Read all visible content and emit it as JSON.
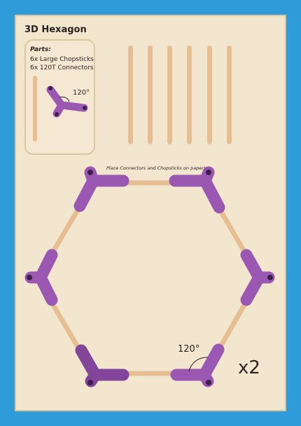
{
  "title": "3D Hexagon",
  "parts": {
    "heading": "Parts:",
    "items": [
      "6x Large Chopsticks",
      "6x 120T Connectors"
    ],
    "angle_label": "120°"
  },
  "instruction": "Place Connectors and Chopsticks on paper!",
  "hexagon": {
    "angle_label": "120°"
  },
  "multiplier": "x2",
  "colors": {
    "background": "#2f9bd9",
    "paper": "#f3e6cf",
    "chopstick": "#e6be92",
    "connector": "#9a58b2",
    "connector_dark": "#6e3a85",
    "text": "#2b2420"
  }
}
